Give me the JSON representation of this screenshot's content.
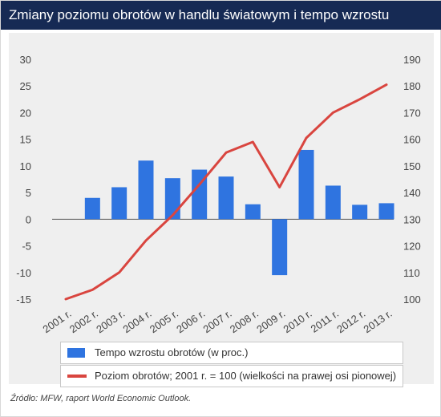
{
  "title": "Zmiany poziomu obrotów w handlu światowym i tempo wzrostu",
  "source": "Źródło: MFW, raport World Economic Outlook.",
  "colors": {
    "header_bg": "#162a54",
    "bar": "#2f74e0",
    "line": "#d9453f",
    "plot_bg": "#efefef"
  },
  "chart_data": {
    "type": "bar",
    "categories": [
      "2001 r.",
      "2002 r.",
      "2003 r.",
      "2004 r.",
      "2005 r.",
      "2006 r.",
      "2007 r.",
      "2008 r.",
      "2009 r.",
      "2010 r.",
      "2011 r.",
      "2012 r.",
      "2013 r."
    ],
    "series": [
      {
        "name": "Tempo wzrostu obrotów (w proc.)",
        "type": "bar",
        "axis": "left",
        "values": [
          null,
          4.0,
          6.0,
          11.0,
          7.7,
          9.3,
          8.0,
          2.8,
          -10.5,
          13.0,
          6.3,
          2.7,
          3.0
        ]
      },
      {
        "name": "Poziom obrotów; 2001 r. = 100 (wielkości na prawej osi pionowej)",
        "type": "line",
        "axis": "right",
        "values": [
          100,
          103.5,
          110,
          122,
          131.5,
          143,
          155,
          159,
          142,
          160.5,
          170,
          175,
          180.5
        ]
      }
    ],
    "left_axis": {
      "ylim": [
        -15,
        30
      ],
      "ticks": [
        "30",
        "25",
        "20",
        "15",
        "10",
        "5",
        "0",
        "-5",
        "-10",
        "-15"
      ]
    },
    "right_axis": {
      "ylim": [
        100,
        190
      ],
      "ticks": [
        "190",
        "180",
        "170",
        "160",
        "150",
        "140",
        "130",
        "120",
        "110",
        "100"
      ]
    },
    "grid": false,
    "legend_position": "bottom"
  }
}
